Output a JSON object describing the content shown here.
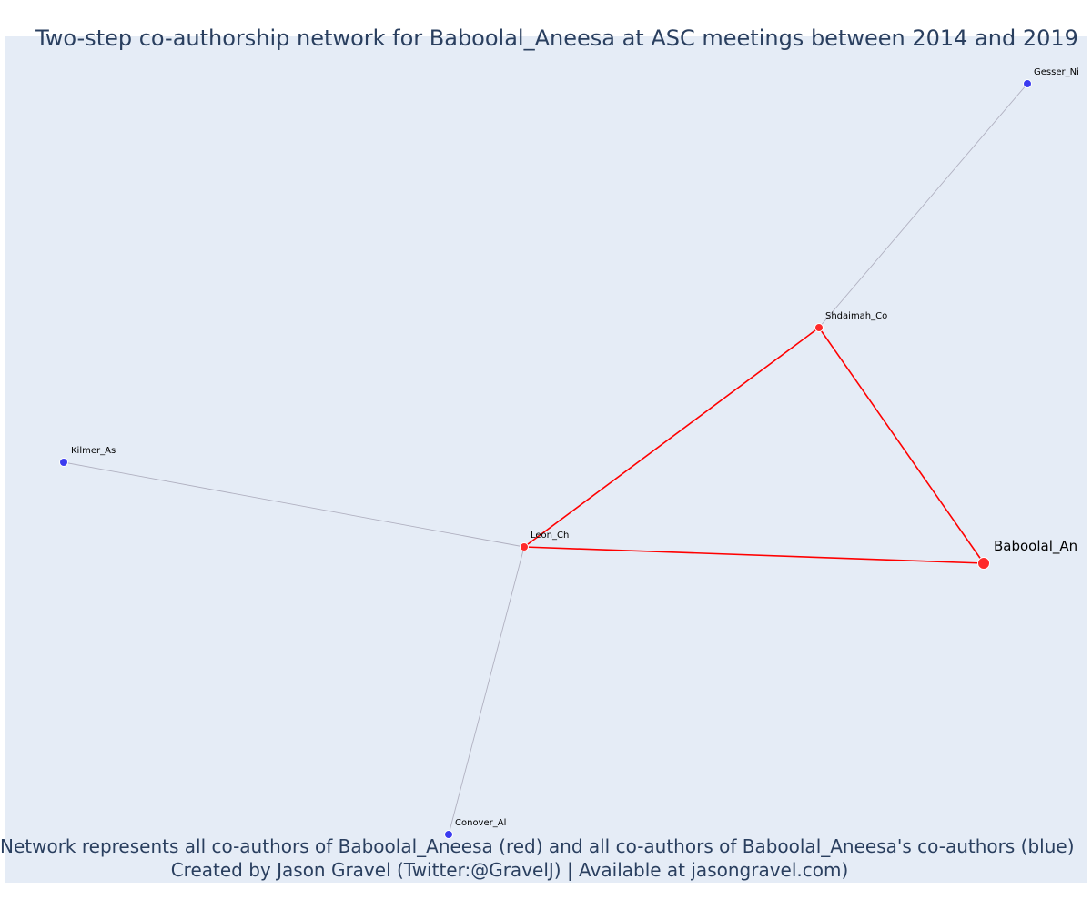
{
  "title": "Two-step co-authorship network for Baboolal_Aneesa at ASC meetings between 2014 and 2019",
  "caption": {
    "line1": "Network represents all co-authors of Baboolal_Aneesa (red) and all co-authors of Baboolal_Aneesa's co-authors (blue)",
    "line2": "Created by Jason Gravel (Twitter:@GravelJ) | Available at jasongravel.com)"
  },
  "colors": {
    "background": "#e5ecf6",
    "coauthor_edge": "#ff0000",
    "second_step_edge": "#b0b0c0",
    "coauthor_node": "#ff2a2a",
    "second_step_node": "#3b3bf0",
    "title_text": "#2a3f5f"
  },
  "nodes": [
    {
      "id": "baboolal",
      "label": "Baboolal_An",
      "group": "focal"
    },
    {
      "id": "leon",
      "label": "Leon_Ch",
      "group": "coauthor"
    },
    {
      "id": "shdaimah",
      "label": "Shdaimah_Co",
      "group": "coauthor"
    },
    {
      "id": "gesser",
      "label": "Gesser_Ni",
      "group": "second_step"
    },
    {
      "id": "kilmer",
      "label": "Kilmer_As",
      "group": "second_step"
    },
    {
      "id": "conover",
      "label": "Conover_Al",
      "group": "second_step"
    }
  ],
  "edges": [
    {
      "source": "baboolal",
      "target": "leon",
      "type": "coauthor"
    },
    {
      "source": "baboolal",
      "target": "shdaimah",
      "type": "coauthor"
    },
    {
      "source": "leon",
      "target": "shdaimah",
      "type": "coauthor"
    },
    {
      "source": "shdaimah",
      "target": "gesser",
      "type": "second_step"
    },
    {
      "source": "leon",
      "target": "kilmer",
      "type": "second_step"
    },
    {
      "source": "leon",
      "target": "conover",
      "type": "second_step"
    }
  ]
}
